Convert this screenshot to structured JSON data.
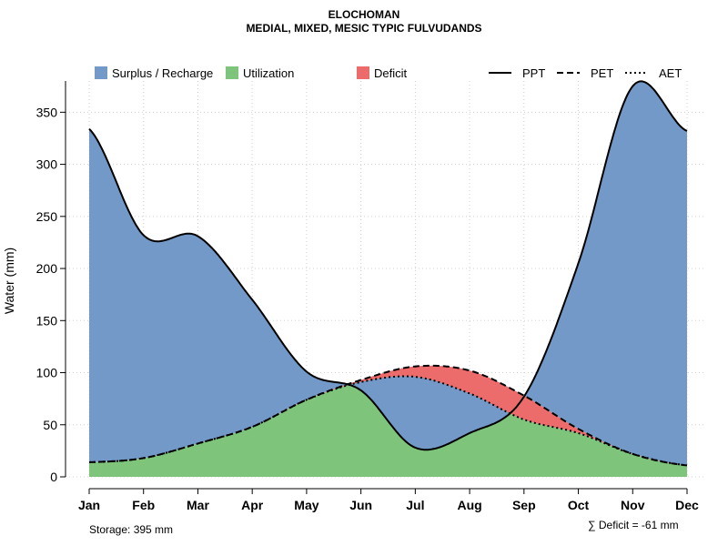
{
  "chart_data": {
    "type": "area",
    "title": "ELOCHOMAN",
    "subtitle": "MEDIAL, MIXED, MESIC TYPIC FULVUDANDS",
    "xlabel": "",
    "ylabel": "Water (mm)",
    "ylim": [
      0,
      380
    ],
    "yticks": [
      0,
      50,
      100,
      150,
      200,
      250,
      300,
      350
    ],
    "categories": [
      "Jan",
      "Feb",
      "Mar",
      "Apr",
      "May",
      "Jun",
      "Jul",
      "Aug",
      "Sep",
      "Oct",
      "Nov",
      "Dec"
    ],
    "series": [
      {
        "name": "PPT",
        "style": "solid",
        "values": [
          334,
          232,
          231,
          170,
          101,
          83,
          28,
          42,
          77,
          205,
          375,
          332
        ]
      },
      {
        "name": "PET",
        "style": "dashed",
        "values": [
          14,
          18,
          32,
          48,
          74,
          93,
          106,
          102,
          78,
          46,
          22,
          11
        ]
      },
      {
        "name": "AET",
        "style": "dotted",
        "values": [
          14,
          18,
          32,
          48,
          74,
          91,
          96,
          80,
          55,
          42,
          22,
          11
        ]
      }
    ],
    "legend": [
      {
        "label": "Surplus / Recharge",
        "kind": "fill",
        "color": "#7399C8"
      },
      {
        "label": "Utilization",
        "kind": "fill",
        "color": "#7FC47B"
      },
      {
        "label": "Deficit",
        "kind": "fill",
        "color": "#EC6B6B"
      },
      {
        "label": "PPT",
        "kind": "line",
        "style": "solid"
      },
      {
        "label": "PET",
        "kind": "line",
        "style": "dashed"
      },
      {
        "label": "AET",
        "kind": "line",
        "style": "dotted"
      }
    ],
    "legend_position": "top",
    "grid": true,
    "colors": {
      "surplus": "#7399C8",
      "utilization": "#7FC47B",
      "deficit": "#EC6B6B",
      "line": "#000000",
      "grid": "#d0d0d0"
    }
  },
  "footer": {
    "storage": "Storage: 395 mm",
    "deficit": "∑ Deficit = -61 mm"
  }
}
